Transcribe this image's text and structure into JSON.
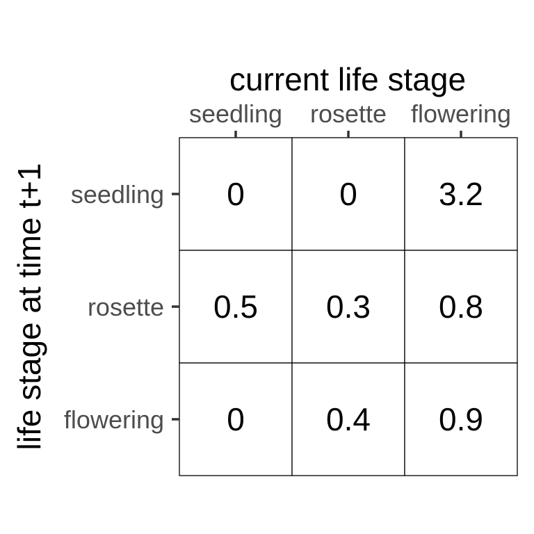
{
  "chart_data": {
    "type": "table",
    "title": "",
    "xlabel": "current life stage",
    "ylabel": "life stage at time t+1",
    "x_categories": [
      "seedling",
      "rosette",
      "flowering"
    ],
    "y_categories": [
      "seedling",
      "rosette",
      "flowering"
    ],
    "cells": [
      [
        "0",
        "0",
        "3.2"
      ],
      [
        "0.5",
        "0.3",
        "0.8"
      ],
      [
        "0",
        "0.4",
        "0.9"
      ]
    ],
    "values": [
      [
        0,
        0,
        3.2
      ],
      [
        0.5,
        0.3,
        0.8
      ],
      [
        0,
        0.4,
        0.9
      ]
    ],
    "x_axis_position": "top",
    "grid": true,
    "legend": "none",
    "colors": {
      "cell_fill": "#ffffff",
      "cell_border": "#000000",
      "text": "#000000",
      "tick_label": "#4d4d4d",
      "tick_mark": "#333333"
    }
  }
}
